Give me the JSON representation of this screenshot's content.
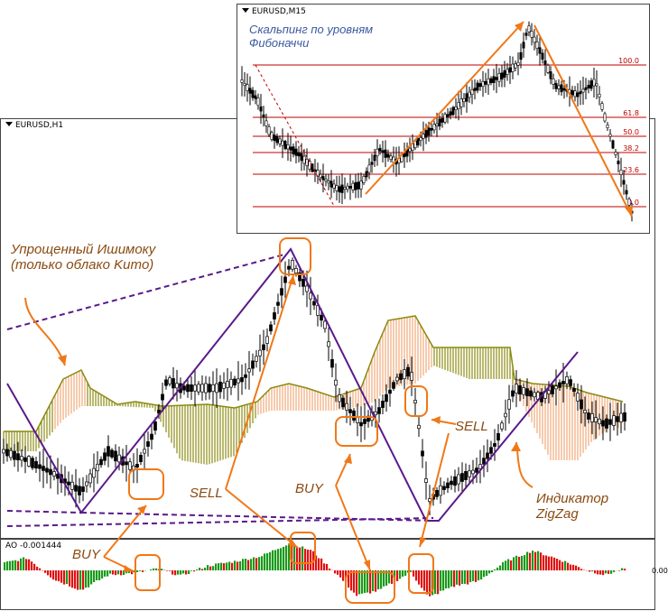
{
  "main_chart": {
    "title": "EURUSD,H1"
  },
  "inset_chart": {
    "title": "EURUSD,M15",
    "caption_line1": "Скальпинг по уровням",
    "caption_line2": "Фибоначчи",
    "fib_levels": [
      "100.0",
      "61.8",
      "50.0",
      "38.2",
      "23.6",
      "0.0"
    ]
  },
  "oscillator": {
    "title": "AO -0.001444",
    "zero_label": "0.00"
  },
  "annotations": {
    "ichimoku_line1": "Упрощенный Ишимоку",
    "ichimoku_line2": "(только облако Kumo)",
    "zigzag_line1": "Индикатор",
    "zigzag_line2": "ZigZag",
    "buy_left": "BUY",
    "sell_left": "SELL",
    "buy_mid": "BUY",
    "sell_right": "SELL"
  },
  "colors": {
    "zigzag": "#5a1a8a",
    "arrows": "#f07818",
    "cloud_bull": "#8a8a10",
    "cloud_bear": "#f0a878",
    "ao_up": "#1a9a1a",
    "ao_down": "#e01010",
    "fib": "#c00000"
  }
}
